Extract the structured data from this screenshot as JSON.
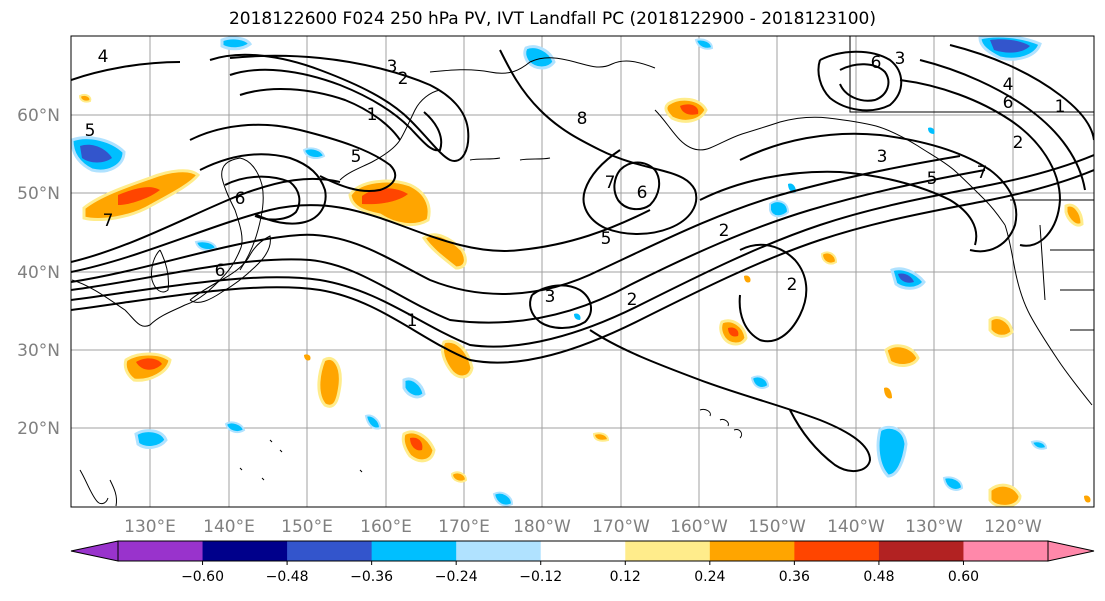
{
  "title": "2018122600 F024 250 hPa PV, IVT Landfall PC (2018122900 - 2018123100)",
  "lat_labels": [
    "60°N",
    "50°N",
    "40°N",
    "30°N",
    "20°N"
  ],
  "lon_labels": [
    "130°E",
    "140°E",
    "150°E",
    "160°E",
    "170°E",
    "180°W",
    "170°W",
    "160°W",
    "150°W",
    "140°W",
    "130°W",
    "120°W"
  ],
  "colorbar": {
    "colors": [
      "#9933cc",
      "#00008b",
      "#3355cc",
      "#00bfff",
      "#b0e2ff",
      "#ffffff",
      "#ffec8b",
      "#ffa500",
      "#ff4500",
      "#b22222",
      "#ff88aa"
    ],
    "tick_labels": [
      "−0.60",
      "−0.48",
      "−0.36",
      "−0.24",
      "−0.12",
      "0.12",
      "0.24",
      "0.36",
      "0.48",
      "0.60"
    ]
  },
  "contour_labels": [
    "4",
    "3",
    "2",
    "1",
    "8",
    "7",
    "6",
    "5",
    "3",
    "2",
    "1",
    "6",
    "7",
    "6",
    "5",
    "3",
    "2",
    "2",
    "6",
    "4",
    "5",
    "1",
    "3",
    "2",
    "7",
    "6",
    "5"
  ]
}
